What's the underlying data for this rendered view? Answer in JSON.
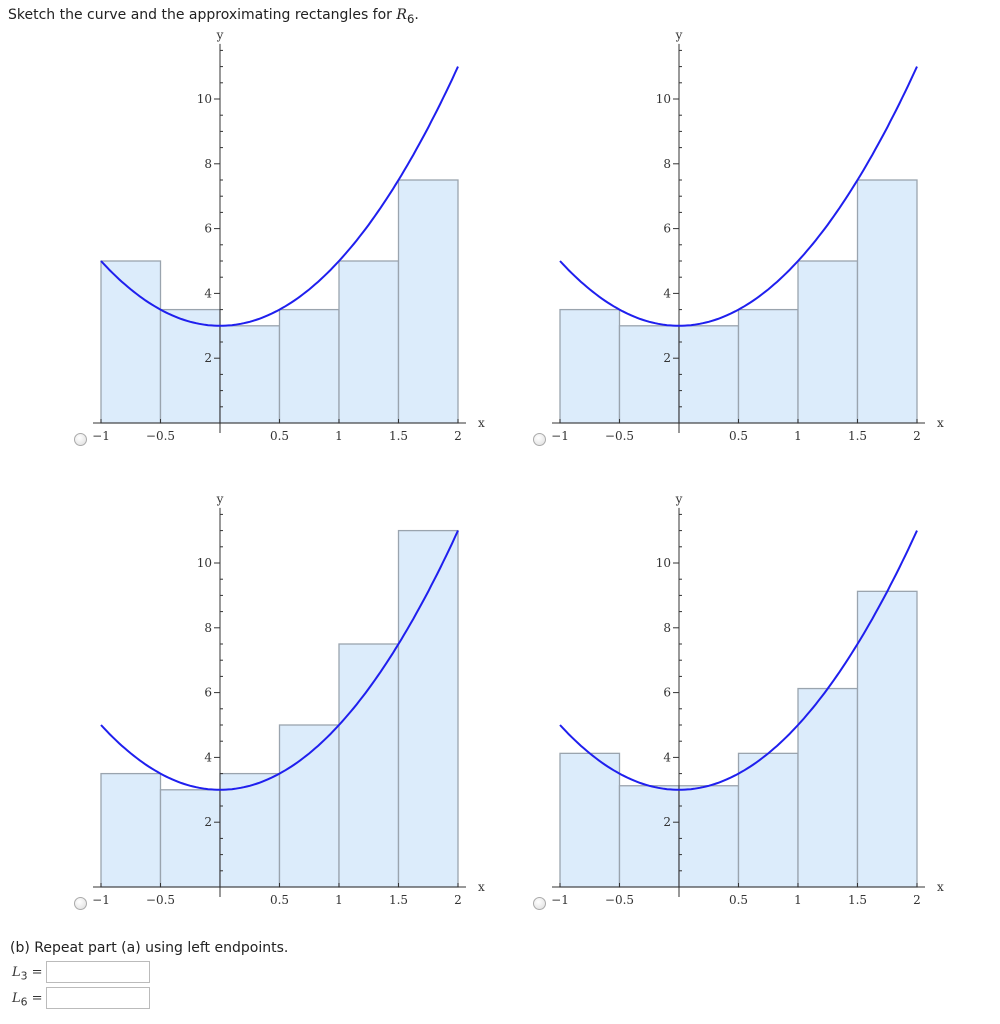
{
  "prompt": {
    "text": "Sketch the curve and the approximating rectangles for ",
    "symbol": "R",
    "sub": "6",
    "end": "."
  },
  "chart_data": [
    {
      "type": "bar",
      "function": "f(x) = 2x^2 + 3",
      "xlabel": "x",
      "ylabel": "y",
      "xlim": [
        -1,
        2
      ],
      "ylim": [
        0,
        11
      ],
      "x_ticks": [
        "-1",
        "-0.5",
        "0.5",
        "1",
        "1.5",
        "2"
      ],
      "y_ticks": [
        "2",
        "4",
        "6",
        "8",
        "10"
      ],
      "rect_left_edges": [
        -1,
        -0.5,
        0,
        0.5,
        1,
        1.5
      ],
      "rect_width": 0.5,
      "values": [
        5,
        3.5,
        3,
        3.5,
        5,
        7.5
      ]
    },
    {
      "type": "bar",
      "function": "f(x) = 2x^2 + 3",
      "xlabel": "x",
      "ylabel": "y",
      "xlim": [
        -1,
        2
      ],
      "ylim": [
        0,
        11
      ],
      "x_ticks": [
        "-1",
        "-0.5",
        "0.5",
        "1",
        "1.5",
        "2"
      ],
      "y_ticks": [
        "2",
        "4",
        "6",
        "8",
        "10"
      ],
      "rect_left_edges": [
        -1,
        -0.5,
        0,
        0.5,
        1,
        1.5
      ],
      "rect_width": 0.5,
      "values": [
        3.5,
        3,
        3,
        3.5,
        5,
        7.5
      ]
    },
    {
      "type": "bar",
      "function": "f(x) = 2x^2 + 3",
      "xlabel": "x",
      "ylabel": "y",
      "xlim": [
        -1,
        2
      ],
      "ylim": [
        0,
        11
      ],
      "x_ticks": [
        "-1",
        "-0.5",
        "0.5",
        "1",
        "1.5",
        "2"
      ],
      "y_ticks": [
        "2",
        "4",
        "6",
        "8",
        "10"
      ],
      "rect_left_edges": [
        -1,
        -0.5,
        0,
        0.5,
        1,
        1.5
      ],
      "rect_width": 0.5,
      "values": [
        3.5,
        3,
        3.5,
        5,
        7.5,
        11
      ]
    },
    {
      "type": "bar",
      "function": "f(x) = 2x^2 + 3",
      "xlabel": "x",
      "ylabel": "y",
      "xlim": [
        -1,
        2
      ],
      "ylim": [
        0,
        11
      ],
      "x_ticks": [
        "-1",
        "-0.5",
        "0.5",
        "1",
        "1.5",
        "2"
      ],
      "y_ticks": [
        "2",
        "4",
        "6",
        "8",
        "10"
      ],
      "rect_left_edges": [
        -1,
        -0.5,
        0,
        0.5,
        1,
        1.5
      ],
      "rect_width": 0.5,
      "values": [
        4.125,
        3.125,
        3.125,
        4.125,
        6.125,
        9.125
      ]
    }
  ],
  "colors": {
    "curve": "#1f1fee",
    "rect_fill": "#dcecfb",
    "rect_stroke": "#9aa4ae"
  },
  "part_b": {
    "text": "(b) Repeat part (a) using left endpoints.",
    "l3_label": "L",
    "l3_sub": "3",
    "l6_label": "L",
    "l6_sub": "6",
    "eq": " =",
    "l3_value": "",
    "l6_value": ""
  }
}
